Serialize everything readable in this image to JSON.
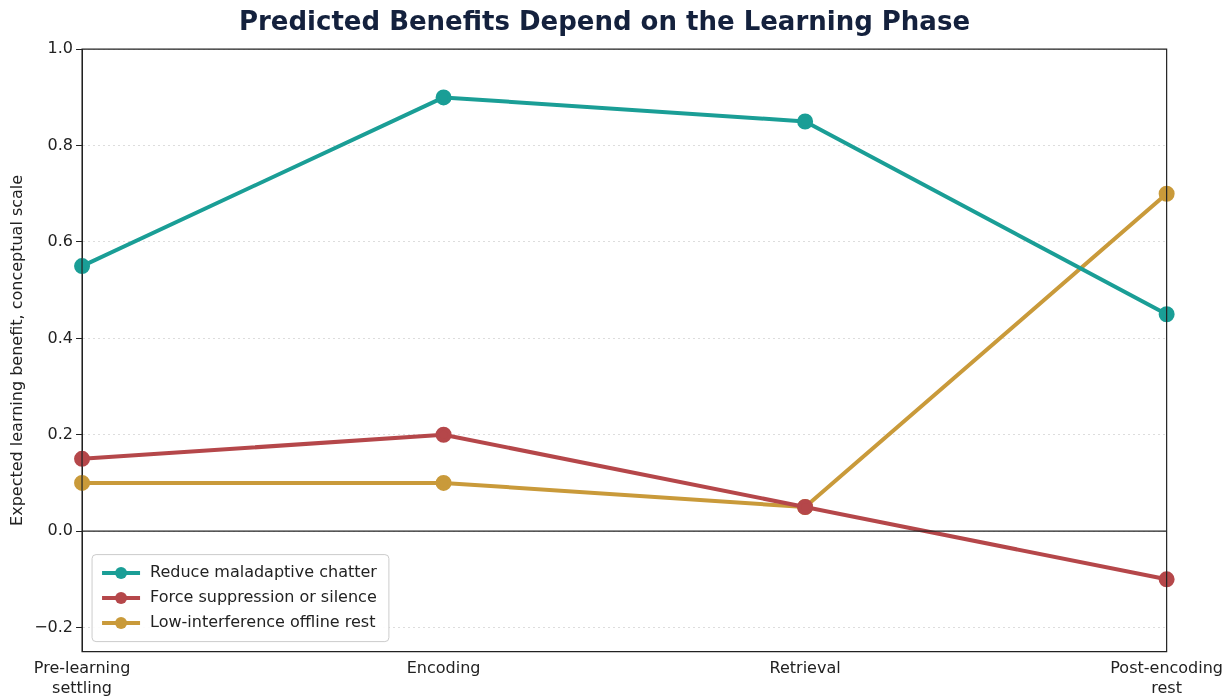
{
  "chart_data": {
    "type": "line",
    "title": "Predicted Benefits Depend on the Learning Phase",
    "ylabel": "Expected learning benefit, conceptual scale",
    "categories": [
      "Pre-learning\nsettling",
      "Encoding",
      "Retrieval",
      "Post-encoding\nrest"
    ],
    "series": [
      {
        "name": "Reduce maladaptive chatter",
        "color": "#1a9e96",
        "values": [
          0.55,
          0.9,
          0.85,
          0.45
        ]
      },
      {
        "name": "Force suppression or silence",
        "color": "#b5474a",
        "values": [
          0.15,
          0.2,
          0.05,
          -0.1
        ]
      },
      {
        "name": "Low-interference offline rest",
        "color": "#c99a3a",
        "values": [
          0.1,
          0.1,
          0.05,
          0.7
        ]
      }
    ],
    "ylim": [
      -0.25,
      1.0
    ],
    "yticks": [
      {
        "value": -0.2,
        "label": "−0.2"
      },
      {
        "value": 0,
        "label": "0.0"
      },
      {
        "value": 0.2,
        "label": "0.2"
      },
      {
        "value": 0.4,
        "label": "0.4"
      },
      {
        "value": 0.6,
        "label": "0.6"
      },
      {
        "value": 0.8,
        "label": "0.8"
      },
      {
        "value": 1,
        "label": "1.0"
      }
    ],
    "ref_lines": [
      {
        "axis": "y",
        "value": 0,
        "color": "#222222"
      }
    ],
    "grid": "y",
    "legend": "bottom left",
    "marker": "circle",
    "line_style": "solid"
  }
}
